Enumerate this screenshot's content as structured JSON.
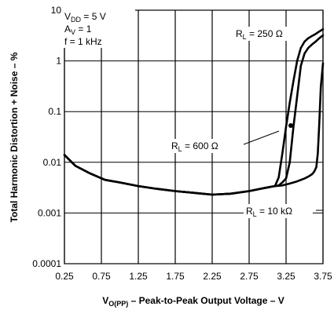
{
  "chart_data": {
    "type": "line",
    "title": "",
    "xlabel": "V",
    "xlabel_sub": "O(PP)",
    "xlabel_rest": " – Peak-to-Peak Output Voltage – V",
    "ylabel": "Total Harmonic Distortion + Noise – %",
    "xlim": [
      0.25,
      3.75
    ],
    "ylim": [
      0.0001,
      10
    ],
    "y_scale": "log",
    "x_ticks": [
      0.25,
      0.75,
      1.25,
      1.75,
      2.25,
      2.75,
      3.25,
      3.75
    ],
    "x_tick_labels": [
      "0.25",
      "0.75",
      "1.25",
      "1.75",
      "2.25",
      "2.75",
      "3.25",
      "3.75"
    ],
    "y_ticks": [
      10,
      1,
      0.1,
      0.01,
      0.001,
      0.0001
    ],
    "y_tick_labels": [
      "10",
      "1",
      "0.1",
      "0.01",
      "0.001",
      "0.0001"
    ],
    "grid": true,
    "conditions": {
      "vdd_sym": "V",
      "vdd_sub": "DD",
      "vdd_rest": " = 5 V",
      "av_sym": "A",
      "av_sub": "V",
      "av_rest": " = 1",
      "freq": "f = 1 kHz"
    },
    "series": [
      {
        "name_sym": "R",
        "name_sub": "L",
        "name_rest": " = 250 Ω",
        "x": [
          0.25,
          0.4,
          0.6,
          0.8,
          1.0,
          1.25,
          1.5,
          1.75,
          2.0,
          2.25,
          2.5,
          2.75,
          2.9,
          3.0,
          3.05,
          3.1,
          3.15,
          3.2,
          3.25,
          3.3,
          3.35,
          3.4,
          3.45,
          3.5,
          3.55,
          3.6,
          3.65,
          3.7,
          3.75
        ],
        "y": [
          0.014,
          0.0085,
          0.006,
          0.0045,
          0.004,
          0.0034,
          0.003,
          0.0027,
          0.0025,
          0.0023,
          0.0024,
          0.0027,
          0.003,
          0.0032,
          0.0033,
          0.0034,
          0.005,
          0.015,
          0.05,
          0.15,
          0.4,
          1.0,
          1.8,
          2.4,
          2.8,
          3.1,
          3.4,
          3.8,
          4.2
        ]
      },
      {
        "name_sym": "R",
        "name_sub": "L",
        "name_rest": " = 600 Ω",
        "x": [
          0.25,
          0.4,
          0.6,
          0.8,
          1.0,
          1.25,
          1.5,
          1.75,
          2.0,
          2.25,
          2.5,
          2.75,
          2.9,
          3.0,
          3.05,
          3.1,
          3.15,
          3.2,
          3.25,
          3.3,
          3.35,
          3.4,
          3.45,
          3.5,
          3.55,
          3.6,
          3.65,
          3.7,
          3.75
        ],
        "y": [
          0.014,
          0.0085,
          0.006,
          0.0045,
          0.004,
          0.0034,
          0.003,
          0.0027,
          0.0025,
          0.0023,
          0.0024,
          0.0027,
          0.003,
          0.0032,
          0.0033,
          0.0034,
          0.0035,
          0.004,
          0.0048,
          0.01,
          0.05,
          0.2,
          0.8,
          1.4,
          1.8,
          2.1,
          2.4,
          2.8,
          3.2
        ]
      },
      {
        "name_sym": "R",
        "name_sub": "L",
        "name_rest": " = 10 kΩ",
        "x": [
          0.25,
          0.4,
          0.6,
          0.8,
          1.0,
          1.25,
          1.5,
          1.75,
          2.0,
          2.25,
          2.5,
          2.75,
          2.9,
          3.0,
          3.1,
          3.2,
          3.3,
          3.4,
          3.5,
          3.55,
          3.6,
          3.63,
          3.66,
          3.68,
          3.7,
          3.72,
          3.75
        ],
        "y": [
          0.014,
          0.0085,
          0.006,
          0.0045,
          0.004,
          0.0034,
          0.003,
          0.0027,
          0.0025,
          0.0023,
          0.0024,
          0.0027,
          0.003,
          0.0032,
          0.0034,
          0.0035,
          0.0038,
          0.0042,
          0.0048,
          0.0052,
          0.0058,
          0.0065,
          0.008,
          0.015,
          0.06,
          0.3,
          0.9
        ]
      }
    ]
  }
}
